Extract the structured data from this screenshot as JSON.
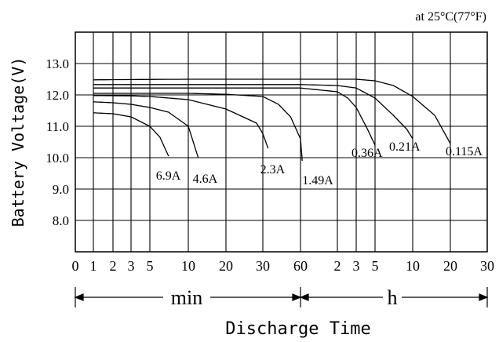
{
  "chart_data": {
    "type": "line",
    "title": "at 25°C(77°F)",
    "ylabel": "Battery Voltage(V)",
    "xlabel": "Discharge Time",
    "ylim": [
      7.0,
      14.0
    ],
    "y_ticks": [
      "13.0",
      "12.0",
      "11.0",
      "10.0",
      "9.0",
      "8.0"
    ],
    "y_tick_values": [
      13.0,
      12.0,
      11.0,
      10.0,
      9.0,
      8.0
    ],
    "x_ticks": [
      "0",
      "1",
      "2",
      "3",
      "5",
      "10",
      "20",
      "30",
      "60",
      "2",
      "3",
      "5",
      "10",
      "20",
      "30"
    ],
    "x_tick_minutes": [
      0,
      1,
      2,
      3,
      5,
      10,
      20,
      30,
      60,
      120,
      180,
      300,
      600,
      1200,
      1800
    ],
    "x_range_labels": {
      "minutes": "min",
      "hours": "h"
    },
    "grid": true,
    "series": [
      {
        "name": "6.9A",
        "x_minutes": [
          1,
          2,
          3,
          5,
          6,
          7
        ],
        "y": [
          11.43,
          11.4,
          11.3,
          11.0,
          10.65,
          10.05
        ]
      },
      {
        "name": "4.6A",
        "x_minutes": [
          1,
          2,
          3,
          5,
          7,
          10,
          12
        ],
        "y": [
          11.78,
          11.75,
          11.7,
          11.6,
          11.45,
          11.0,
          10.0
        ]
      },
      {
        "name": "2.3A",
        "x_minutes": [
          1,
          3,
          5,
          10,
          20,
          28,
          33
        ],
        "y": [
          11.98,
          11.97,
          11.95,
          11.85,
          11.55,
          11.1,
          10.3
        ]
      },
      {
        "name": "1.49A",
        "x_minutes": [
          1,
          5,
          10,
          20,
          30,
          40,
          50,
          60,
          62
        ],
        "y": [
          12.05,
          12.05,
          12.05,
          12.02,
          11.95,
          11.7,
          11.3,
          10.6,
          9.9
        ]
      },
      {
        "name": "0.36A",
        "x_minutes": [
          1,
          10,
          60,
          120,
          150,
          180,
          240,
          300
        ],
        "y": [
          12.22,
          12.22,
          12.22,
          12.1,
          11.9,
          11.6,
          10.95,
          10.4
        ]
      },
      {
        "name": "0.21A",
        "x_minutes": [
          1,
          10,
          60,
          120,
          180,
          300,
          420,
          540,
          600
        ],
        "y": [
          12.33,
          12.33,
          12.33,
          12.3,
          12.22,
          11.9,
          11.35,
          10.9,
          10.6
        ]
      },
      {
        "name": "0.115A",
        "x_minutes": [
          1,
          10,
          60,
          180,
          300,
          420,
          600,
          900,
          1200
        ],
        "y": [
          12.48,
          12.5,
          12.5,
          12.5,
          12.45,
          12.3,
          11.95,
          11.35,
          10.45
        ]
      }
    ]
  }
}
